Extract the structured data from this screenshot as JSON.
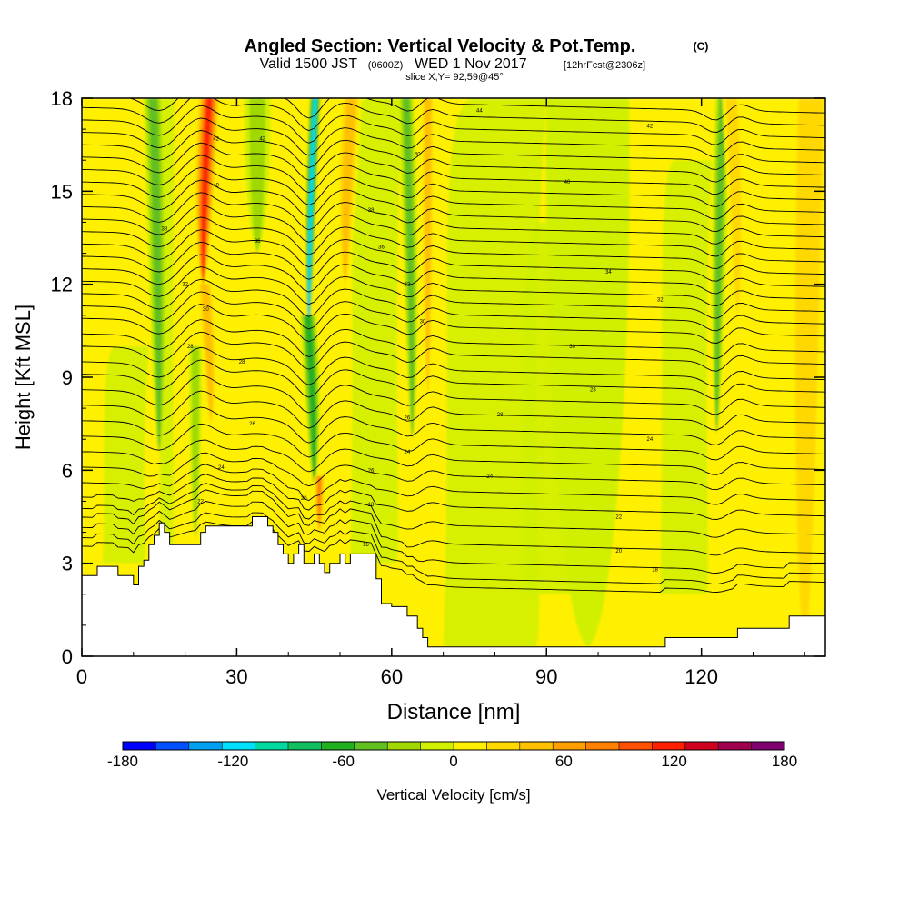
{
  "header": {
    "title": "Angled Section: Vertical Velocity & Pot.Temp.",
    "title_units": "(C)",
    "valid_prefix": "Valid 1500 JST",
    "valid_utc": "(0600Z)",
    "valid_date": "WED 1 Nov 2017",
    "forecast": "[12hrFcst@2306z]",
    "slice": "slice X,Y= 92,59@45°"
  },
  "chart_data": {
    "type": "heatmap",
    "xlabel": "Distance [nm]",
    "ylabel": "Height [Kft MSL]",
    "xlim": [
      0,
      144
    ],
    "ylim": [
      0,
      18
    ],
    "x_ticks": [
      0,
      30,
      60,
      90,
      120
    ],
    "y_ticks": [
      0,
      3,
      6,
      9,
      12,
      15,
      18
    ],
    "fill_variable": "Vertical Velocity",
    "contour_variable": "Pot.Temp.",
    "colorbar": {
      "label": "Vertical Velocity [cm/s]",
      "ticks": [
        -180,
        -120,
        -60,
        0,
        60,
        120,
        180
      ],
      "levels": [
        -180,
        -162,
        -144,
        -126,
        -108,
        -90,
        -72,
        -54,
        -36,
        -18,
        0,
        18,
        36,
        54,
        72,
        90,
        108,
        126,
        144,
        162,
        180
      ],
      "colors": [
        "#0000ff",
        "#0050ff",
        "#00a0f0",
        "#00e0ff",
        "#00d8a0",
        "#10c060",
        "#20b020",
        "#60c020",
        "#a0d800",
        "#d0f000",
        "#fff000",
        "#ffd800",
        "#ffc000",
        "#ffa000",
        "#ff8000",
        "#ff5000",
        "#ff2000",
        "#d00020",
        "#a00050",
        "#800070"
      ]
    },
    "background_value": 9,
    "features": [
      {
        "x": 15,
        "y_top": 18,
        "y_bottom": 6.6,
        "width": 1.9,
        "value": -58
      },
      {
        "x": 22,
        "y_top": 10,
        "y_bottom": 3.8,
        "width": 1.2,
        "value": -40
      },
      {
        "x": 23.5,
        "y_top": 18,
        "y_bottom": 12,
        "width": 2.2,
        "value": 125
      },
      {
        "x": 25,
        "y_top": 12,
        "y_bottom": 7.5,
        "width": 1.6,
        "value": 60
      },
      {
        "x": 34,
        "y_top": 18,
        "y_bottom": 13,
        "width": 2.5,
        "value": -30
      },
      {
        "x": 44,
        "y_top": 18,
        "y_bottom": 10.5,
        "width": 1.1,
        "value": -128
      },
      {
        "x": 45,
        "y_top": 11,
        "y_bottom": 5.5,
        "width": 1.6,
        "value": -65
      },
      {
        "x": 46,
        "y_top": 5.8,
        "y_bottom": 4.0,
        "width": 1.0,
        "value": 95
      },
      {
        "x": 51,
        "y_top": 18,
        "y_bottom": 12,
        "width": 2.0,
        "value": 55
      },
      {
        "x": 64,
        "y_top": 18,
        "y_bottom": 7.0,
        "width": 1.5,
        "value": -48
      },
      {
        "x": 67,
        "y_top": 18,
        "y_bottom": 8.5,
        "width": 1.3,
        "value": 50
      },
      {
        "x": 123,
        "y_top": 18,
        "y_bottom": 7.2,
        "width": 1.5,
        "value": -62
      },
      {
        "x": 127,
        "y_top": 18,
        "y_bottom": 11,
        "width": 1.8,
        "value": 40
      },
      {
        "x": 98,
        "y_top": 18,
        "y_bottom": 0.3,
        "width": 8,
        "value": -22
      },
      {
        "x": 140,
        "y_top": 18,
        "y_bottom": 0.5,
        "width": 4,
        "value": 30
      }
    ],
    "terrain": [
      [
        0,
        2.6
      ],
      [
        3,
        2.6
      ],
      [
        3,
        2.9
      ],
      [
        7,
        2.9
      ],
      [
        7,
        2.6
      ],
      [
        10,
        2.6
      ],
      [
        10,
        2.3
      ],
      [
        11,
        2.3
      ],
      [
        11,
        2.9
      ],
      [
        12,
        2.9
      ],
      [
        12,
        3.1
      ],
      [
        13,
        3.1
      ],
      [
        13,
        3.6
      ],
      [
        14,
        3.6
      ],
      [
        14,
        3.9
      ],
      [
        15,
        3.9
      ],
      [
        15,
        4.3
      ],
      [
        16,
        4.3
      ],
      [
        16,
        4.0
      ],
      [
        17,
        4.0
      ],
      [
        17,
        3.6
      ],
      [
        23,
        3.6
      ],
      [
        23,
        4.0
      ],
      [
        24,
        4.0
      ],
      [
        24,
        4.2
      ],
      [
        33,
        4.2
      ],
      [
        33,
        4.5
      ],
      [
        36,
        4.5
      ],
      [
        36,
        4.2
      ],
      [
        37,
        4.2
      ],
      [
        37,
        4.0
      ],
      [
        38,
        4.0
      ],
      [
        38,
        3.6
      ],
      [
        39,
        3.6
      ],
      [
        39,
        3.3
      ],
      [
        40,
        3.3
      ],
      [
        40,
        3.0
      ],
      [
        41,
        3.0
      ],
      [
        41,
        3.3
      ],
      [
        42,
        3.3
      ],
      [
        42,
        3.6
      ],
      [
        43,
        3.6
      ],
      [
        43,
        3.0
      ],
      [
        45,
        3.0
      ],
      [
        45,
        3.3
      ],
      [
        46,
        3.3
      ],
      [
        46,
        3.0
      ],
      [
        47,
        3.0
      ],
      [
        47,
        2.7
      ],
      [
        48,
        2.7
      ],
      [
        48,
        3.0
      ],
      [
        50,
        3.0
      ],
      [
        50,
        3.3
      ],
      [
        51,
        3.3
      ],
      [
        51,
        3.0
      ],
      [
        52,
        3.0
      ],
      [
        52,
        3.3
      ],
      [
        57,
        3.3
      ],
      [
        57,
        2.5
      ],
      [
        58,
        2.5
      ],
      [
        58,
        1.7
      ],
      [
        60,
        1.7
      ],
      [
        60,
        1.6
      ],
      [
        63,
        1.6
      ],
      [
        63,
        1.3
      ],
      [
        65,
        1.3
      ],
      [
        65,
        0.9
      ],
      [
        66,
        0.9
      ],
      [
        66,
        0.6
      ],
      [
        67,
        0.6
      ],
      [
        67,
        0.3
      ],
      [
        113,
        0.3
      ],
      [
        113,
        0.6
      ],
      [
        127,
        0.6
      ],
      [
        127,
        0.9
      ],
      [
        137,
        0.9
      ],
      [
        137,
        1.3
      ],
      [
        144,
        1.3
      ]
    ],
    "isentropes": {
      "levels": [
        2,
        4,
        6,
        8,
        10,
        12,
        14,
        16,
        18,
        20,
        22,
        24,
        26,
        28,
        30,
        32,
        34,
        36,
        38,
        40,
        42,
        44,
        46,
        48,
        50,
        52,
        54,
        56,
        58,
        60,
        62,
        64,
        66,
        68,
        70,
        72
      ],
      "heights_at_x0": [
        2.2,
        2.7,
        3.3,
        3.9,
        4.5,
        5.1,
        5.6,
        6.1,
        6.6,
        7.1,
        7.6,
        8.1,
        8.6,
        9.1,
        9.5,
        10.0,
        10.4,
        10.9,
        11.3,
        11.7,
        12.1,
        12.5,
        12.9,
        13.3,
        13.7,
        14.1,
        14.5,
        14.9,
        15.3,
        15.7,
        16.1,
        16.5,
        16.9,
        17.3,
        17.7,
        18.1
      ],
      "labels": [
        {
          "x": 43,
          "y": 5.1,
          "text": "20"
        },
        {
          "x": 79,
          "y": 5.8,
          "text": "24"
        },
        {
          "x": 95,
          "y": 10.0,
          "text": "30"
        },
        {
          "x": 56,
          "y": 6.0,
          "text": "26"
        },
        {
          "x": 81,
          "y": 7.8,
          "text": "28"
        },
        {
          "x": 102,
          "y": 12.4,
          "text": "34"
        },
        {
          "x": 94,
          "y": 15.3,
          "text": "40"
        },
        {
          "x": 110,
          "y": 17.1,
          "text": "42"
        },
        {
          "x": 77,
          "y": 17.6,
          "text": "44"
        },
        {
          "x": 20,
          "y": 12.0,
          "text": "32"
        },
        {
          "x": 24,
          "y": 11.2,
          "text": "30"
        },
        {
          "x": 31,
          "y": 9.5,
          "text": "28"
        },
        {
          "x": 33,
          "y": 7.5,
          "text": "26"
        },
        {
          "x": 27,
          "y": 6.1,
          "text": "24"
        },
        {
          "x": 23,
          "y": 5.0,
          "text": "22"
        },
        {
          "x": 104,
          "y": 4.5,
          "text": "22"
        },
        {
          "x": 104,
          "y": 3.4,
          "text": "20"
        },
        {
          "x": 111,
          "y": 2.8,
          "text": "18"
        },
        {
          "x": 55,
          "y": 3.6,
          "text": "16"
        },
        {
          "x": 56,
          "y": 4.9,
          "text": "18"
        },
        {
          "x": 63,
          "y": 7.7,
          "text": "26"
        },
        {
          "x": 63,
          "y": 12.0,
          "text": "32"
        },
        {
          "x": 66,
          "y": 10.8,
          "text": "30"
        },
        {
          "x": 58,
          "y": 13.2,
          "text": "36"
        },
        {
          "x": 56,
          "y": 14.4,
          "text": "38"
        },
        {
          "x": 16,
          "y": 13.8,
          "text": "38"
        },
        {
          "x": 26,
          "y": 16.7,
          "text": "42"
        },
        {
          "x": 26,
          "y": 15.2,
          "text": "40"
        },
        {
          "x": 35,
          "y": 16.7,
          "text": "42"
        },
        {
          "x": 34,
          "y": 13.4,
          "text": "36"
        },
        {
          "x": 65,
          "y": 16.2,
          "text": "40"
        },
        {
          "x": 112,
          "y": 11.5,
          "text": "32"
        },
        {
          "x": 99,
          "y": 8.6,
          "text": "28"
        },
        {
          "x": 110,
          "y": 7.0,
          "text": "24"
        },
        {
          "x": 63,
          "y": 6.6,
          "text": "24"
        },
        {
          "x": 21,
          "y": 10.0,
          "text": "28"
        }
      ]
    }
  }
}
